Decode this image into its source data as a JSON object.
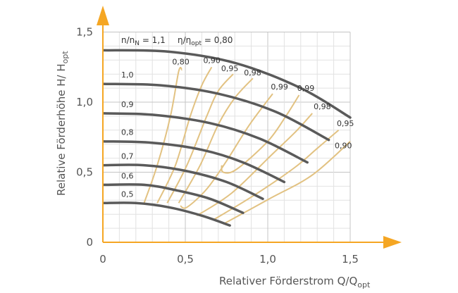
{
  "chart_data": {
    "type": "line",
    "title": "",
    "xlabel": "Relativer Förderstrom Q/Q",
    "xlabel_sub": "opt",
    "ylabel": "Relative Förderhöhe H/ H",
    "ylabel_sub": "opt",
    "xlim": [
      0,
      1.5
    ],
    "ylim": [
      0,
      1.5
    ],
    "x_ticks": [
      {
        "value": 0,
        "label": "0"
      },
      {
        "value": 0.5,
        "label": "0,5"
      },
      {
        "value": 1.0,
        "label": "1,0"
      },
      {
        "value": 1.5,
        "label": "1,5"
      }
    ],
    "y_ticks": [
      {
        "value": 0,
        "label": "0"
      },
      {
        "value": 0.5,
        "label": "0,5"
      },
      {
        "value": 1.0,
        "label": "1,0"
      },
      {
        "value": 1.5,
        "label": "1,5"
      }
    ],
    "header_speed": {
      "prefix": "n/n",
      "sub": "N",
      "suffix": " = 1,1"
    },
    "header_eff": {
      "prefix": "η/η",
      "sub": "opt",
      "suffix": " = 0,80"
    },
    "speed_series": [
      {
        "name": "1,1",
        "labeled": false,
        "points": [
          [
            0,
            1.37
          ],
          [
            0.4,
            1.36
          ],
          [
            0.8,
            1.28
          ],
          [
            1.2,
            1.1
          ],
          [
            1.5,
            0.89
          ]
        ]
      },
      {
        "name": "1,0",
        "labeled": true,
        "points": [
          [
            0,
            1.13
          ],
          [
            0.35,
            1.12
          ],
          [
            0.7,
            1.06
          ],
          [
            1.05,
            0.93
          ],
          [
            1.37,
            0.73
          ]
        ]
      },
      {
        "name": "0,9",
        "labeled": true,
        "points": [
          [
            0,
            0.92
          ],
          [
            0.3,
            0.91
          ],
          [
            0.65,
            0.85
          ],
          [
            0.95,
            0.74
          ],
          [
            1.24,
            0.57
          ]
        ]
      },
      {
        "name": "0,8",
        "labeled": true,
        "points": [
          [
            0,
            0.72
          ],
          [
            0.3,
            0.71
          ],
          [
            0.6,
            0.66
          ],
          [
            0.85,
            0.57
          ],
          [
            1.1,
            0.43
          ]
        ]
      },
      {
        "name": "0,7",
        "labeled": true,
        "points": [
          [
            0,
            0.55
          ],
          [
            0.25,
            0.55
          ],
          [
            0.5,
            0.51
          ],
          [
            0.75,
            0.43
          ],
          [
            0.97,
            0.31
          ]
        ]
      },
      {
        "name": "0,6",
        "labeled": true,
        "points": [
          [
            0,
            0.41
          ],
          [
            0.25,
            0.41
          ],
          [
            0.45,
            0.37
          ],
          [
            0.65,
            0.31
          ],
          [
            0.85,
            0.21
          ]
        ]
      },
      {
        "name": "0,5",
        "labeled": true,
        "points": [
          [
            0,
            0.28
          ],
          [
            0.2,
            0.28
          ],
          [
            0.4,
            0.25
          ],
          [
            0.6,
            0.19
          ],
          [
            0.77,
            0.12
          ]
        ]
      }
    ],
    "efficiency_series": [
      {
        "name": "0,80",
        "labeled": true,
        "points": [
          [
            0.25,
            0.28
          ],
          [
            0.33,
            0.55
          ],
          [
            0.41,
            0.9
          ],
          [
            0.46,
            1.22
          ],
          [
            0.48,
            1.23
          ]
        ]
      },
      {
        "name": "0,90",
        "labeled": true,
        "points": [
          [
            0.33,
            0.28
          ],
          [
            0.44,
            0.55
          ],
          [
            0.53,
            0.9
          ],
          [
            0.6,
            1.12
          ],
          [
            0.66,
            1.25
          ]
        ]
      },
      {
        "name": "0,95",
        "labeled": true,
        "points": [
          [
            0.39,
            0.28
          ],
          [
            0.51,
            0.55
          ],
          [
            0.63,
            0.9
          ],
          [
            0.7,
            1.08
          ],
          [
            0.79,
            1.2
          ]
        ]
      },
      {
        "name": "0,98",
        "labeled": true,
        "points": [
          [
            0.46,
            0.28
          ],
          [
            0.59,
            0.55
          ],
          [
            0.7,
            0.84
          ],
          [
            0.8,
            1.03
          ],
          [
            0.91,
            1.17
          ]
        ]
      },
      {
        "name": "0,99",
        "labeled": true,
        "points": [
          [
            0.47,
            0.26
          ],
          [
            0.51,
            0.25
          ],
          [
            0.63,
            0.38
          ],
          [
            0.75,
            0.58
          ],
          [
            0.89,
            0.84
          ],
          [
            1.03,
            1.06
          ]
        ]
      },
      {
        "name": "0,99",
        "labeled": true,
        "points": [
          [
            0.72,
            0.55
          ],
          [
            0.73,
            0.5
          ],
          [
            0.81,
            0.52
          ],
          [
            1.0,
            0.72
          ],
          [
            1.11,
            0.9
          ],
          [
            1.19,
            1.05
          ]
        ]
      },
      {
        "name": "0,98",
        "labeled": true,
        "points": [
          [
            0.57,
            0.19
          ],
          [
            0.78,
            0.35
          ],
          [
            1.02,
            0.62
          ],
          [
            1.17,
            0.79
          ],
          [
            1.27,
            0.92
          ]
        ]
      },
      {
        "name": "0,95",
        "labeled": true,
        "points": [
          [
            0.67,
            0.16
          ],
          [
            0.91,
            0.33
          ],
          [
            1.16,
            0.53
          ],
          [
            1.3,
            0.67
          ],
          [
            1.43,
            0.8
          ]
        ]
      },
      {
        "name": "0,90",
        "labeled": true,
        "points": [
          [
            0.73,
            0.13
          ],
          [
            1.01,
            0.31
          ],
          [
            1.27,
            0.48
          ],
          [
            1.5,
            0.72
          ]
        ]
      }
    ],
    "colors": {
      "axis": "#F5A623",
      "speed_curve": "#5A5A5A",
      "efficiency_curve": "#E2C282",
      "grid_major": "#C4C4C4",
      "grid_minor": "#E2E2E2",
      "text": "#555555"
    }
  }
}
